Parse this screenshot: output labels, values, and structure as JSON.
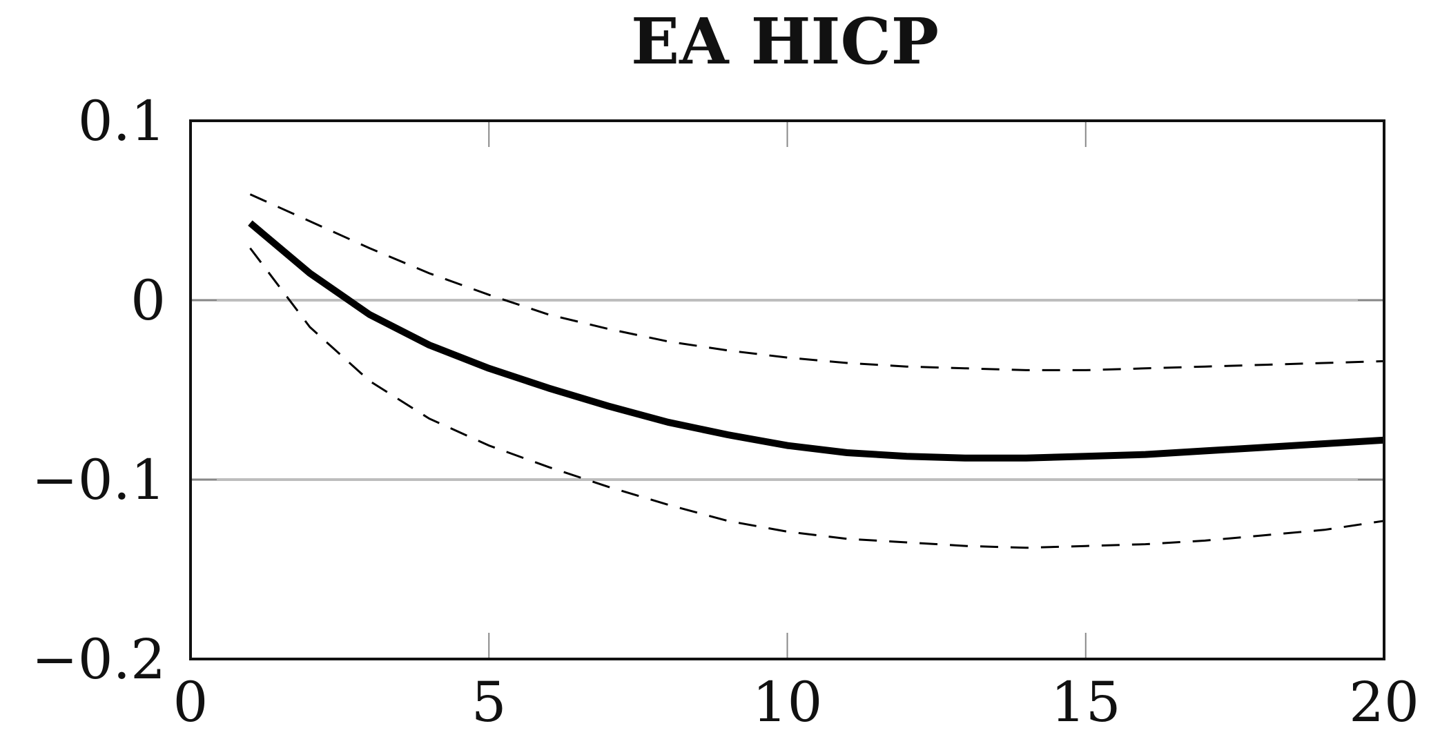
{
  "chart_data": {
    "type": "line",
    "title": "EA HICP",
    "xlabel": "",
    "ylabel": "",
    "xlim": [
      0,
      20
    ],
    "ylim": [
      -0.2,
      0.1
    ],
    "x_ticks": [
      0,
      5,
      10,
      15,
      20
    ],
    "x_tick_labels": [
      "0",
      "5",
      "10",
      "15",
      "20"
    ],
    "y_ticks": [
      0.1,
      0,
      -0.1,
      -0.2
    ],
    "y_tick_labels": [
      "0.1",
      "0",
      "−0.1",
      "−0.2"
    ],
    "grid_y": [
      0,
      -0.1
    ],
    "x": [
      1,
      2,
      3,
      4,
      5,
      6,
      7,
      8,
      9,
      10,
      11,
      12,
      13,
      14,
      15,
      16,
      17,
      18,
      19,
      20
    ],
    "series": [
      {
        "style": "solid-thick",
        "values": [
          0.043,
          0.015,
          -0.008,
          -0.025,
          -0.038,
          -0.049,
          -0.059,
          -0.068,
          -0.075,
          -0.081,
          -0.085,
          -0.087,
          -0.088,
          -0.088,
          -0.087,
          -0.086,
          -0.084,
          -0.082,
          -0.08,
          -0.078
        ]
      },
      {
        "style": "dashed",
        "values": [
          0.059,
          0.044,
          0.029,
          0.015,
          0.003,
          -0.008,
          -0.016,
          -0.023,
          -0.028,
          -0.032,
          -0.035,
          -0.037,
          -0.038,
          -0.039,
          -0.039,
          -0.038,
          -0.037,
          -0.036,
          -0.035,
          -0.034
        ]
      },
      {
        "style": "dashed",
        "values": [
          0.029,
          -0.015,
          -0.045,
          -0.066,
          -0.081,
          -0.093,
          -0.104,
          -0.114,
          -0.123,
          -0.129,
          -0.133,
          -0.135,
          -0.137,
          -0.138,
          -0.137,
          -0.136,
          -0.134,
          -0.131,
          -0.128,
          -0.123
        ]
      }
    ]
  }
}
